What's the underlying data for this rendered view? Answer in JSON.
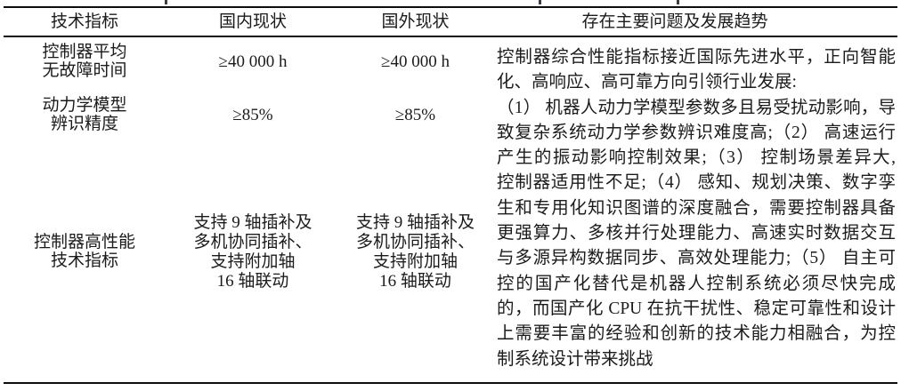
{
  "table": {
    "headers": {
      "indicator": "技术指标",
      "domestic": "国内现状",
      "overseas": "国外现状",
      "issues": "存在主要问题及发展趋势"
    },
    "rows": [
      {
        "indicator_lines": [
          "控制器平均",
          "无故障时间"
        ],
        "domestic_lines": [
          "≥40 000 h"
        ],
        "overseas_lines": [
          "≥40 000 h"
        ]
      },
      {
        "indicator_lines": [
          "动力学模型",
          "辨识精度"
        ],
        "domestic_lines": [
          "≥85%"
        ],
        "overseas_lines": [
          "≥85%"
        ]
      },
      {
        "indicator_lines": [
          "控制器高性能",
          "技术指标"
        ],
        "domestic_lines": [
          "支持 9 轴插补及",
          "多机协同插补、",
          "支持附加轴",
          "16 轴联动"
        ],
        "overseas_lines": [
          "支持 9 轴插补及",
          "多机协同插补、",
          "支持附加轴",
          "16 轴联动"
        ]
      }
    ],
    "issues_lines": [
      "控制器综合性能指标接近国际先进水平，正向智能",
      "化、高响应、高可靠方向引领行业发展:",
      "（1） 机器人动力学模型参数多且易受扰动影响，导",
      "致复杂系统动力学参数辨识难度高;（2） 高速运行",
      "产生的振动影响控制效果;（3） 控制场景差异大,",
      "控制器适用性不足;（4） 感知、规划决策、数字孪",
      "生和专用化知识图谱的深度融合，需要控制器具备",
      "更强算力、多核并行处理能力、高速实时数据交互",
      "与多源异构数据同步、高效处理能力;（5） 自主可",
      "控的国产化替代是机器人控制系统必须尽快完成",
      "的，而国产化 CPU 在抗干扰性、稳定可靠性和设计",
      "上需要丰富的经验和创新的技术能力相融合，为控",
      "制系统设计带来挑战"
    ]
  }
}
